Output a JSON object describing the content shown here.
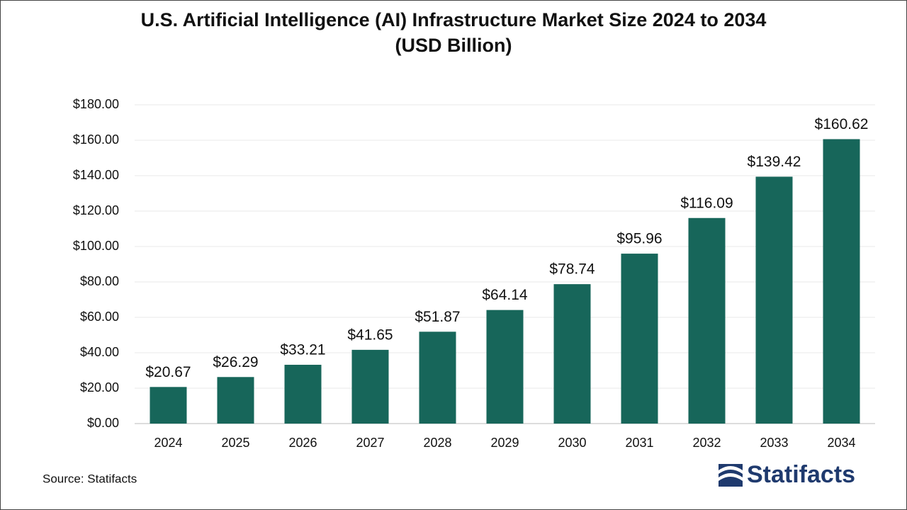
{
  "chart_data": {
    "type": "bar",
    "title": [
      "U.S. Artificial Intelligence (AI) Infrastructure Market Size 2024 to 2034",
      "(USD Billion)"
    ],
    "categories": [
      "2024",
      "2025",
      "2026",
      "2027",
      "2028",
      "2029",
      "2030",
      "2031",
      "2032",
      "2033",
      "2034"
    ],
    "values": [
      20.67,
      26.29,
      33.21,
      41.65,
      51.87,
      64.14,
      78.74,
      95.96,
      116.09,
      139.42,
      160.62
    ],
    "value_labels": [
      "$20.67",
      "$26.29",
      "$33.21",
      "$41.65",
      "$51.87",
      "$64.14",
      "$78.74",
      "$95.96",
      "$116.09",
      "$139.42",
      "$160.62"
    ],
    "color": "#17665a",
    "ylim": [
      0,
      180
    ],
    "yticks": [
      {
        "value": 0,
        "label": "$0.00"
      },
      {
        "value": 20,
        "label": "$20.00"
      },
      {
        "value": 40,
        "label": "$40.00"
      },
      {
        "value": 60,
        "label": "$60.00"
      },
      {
        "value": 80,
        "label": "$80.00"
      },
      {
        "value": 100,
        "label": "$100.00"
      },
      {
        "value": 120,
        "label": "$120.00"
      },
      {
        "value": 140,
        "label": "$140.00"
      },
      {
        "value": 160,
        "label": "$160.00"
      },
      {
        "value": 180,
        "label": "$180.00"
      }
    ],
    "grid": true
  },
  "source": "Source: Statifacts",
  "logo": "Statifacts"
}
